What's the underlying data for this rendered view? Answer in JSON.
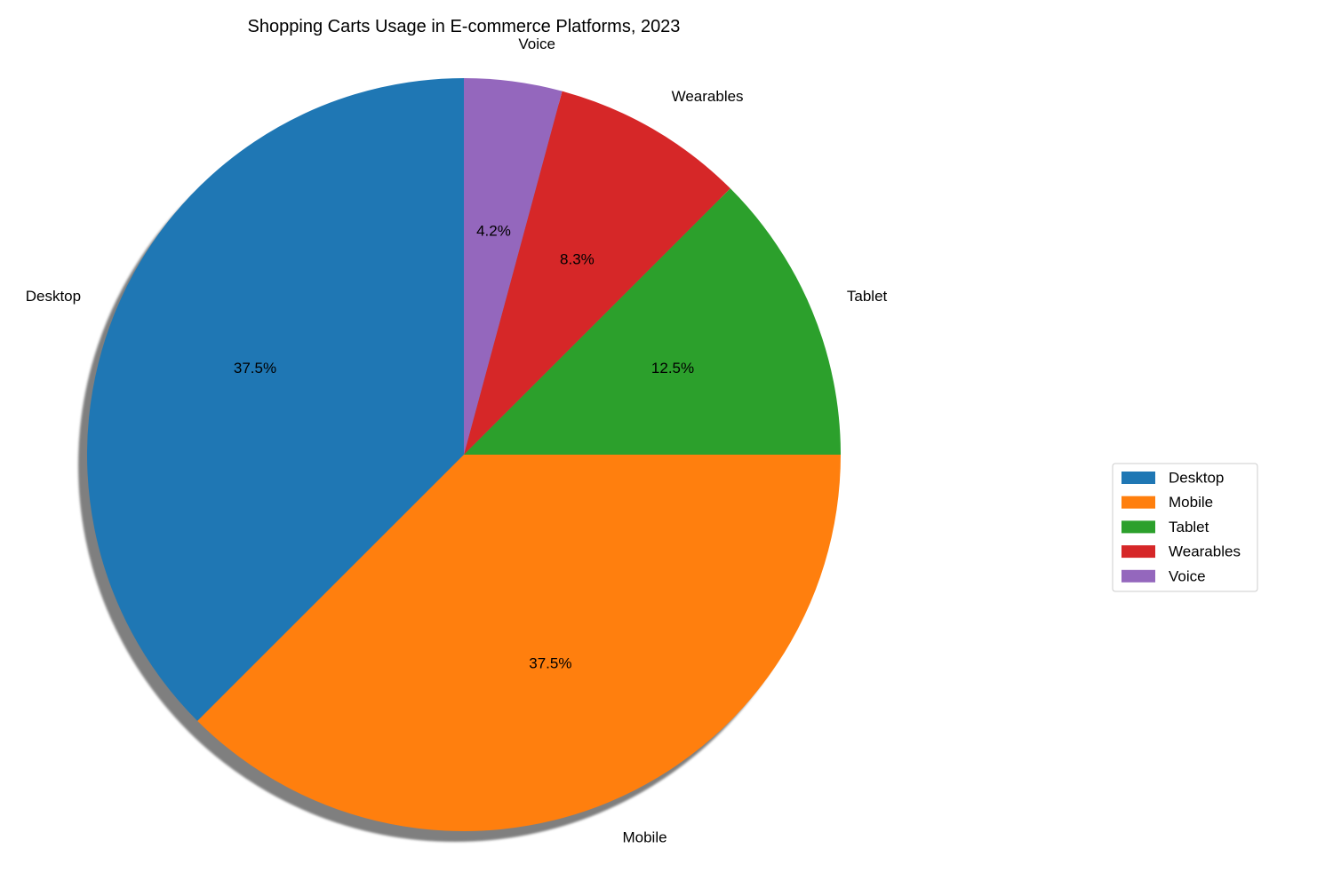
{
  "chart_data": {
    "type": "pie",
    "title": "Shopping Carts Usage in E-commerce Platforms, 2023",
    "categories": [
      "Desktop",
      "Mobile",
      "Tablet",
      "Wearables",
      "Voice"
    ],
    "values": [
      37.5,
      37.5,
      12.5,
      8.3,
      4.2
    ],
    "value_labels": [
      "37.5%",
      "37.5%",
      "12.5%",
      "8.3%",
      "4.2%"
    ],
    "colors": [
      "#1f77b4",
      "#ff7f0e",
      "#2ca02c",
      "#d62728",
      "#9467bd"
    ],
    "start_angle_deg": 90,
    "direction": "counterclockwise",
    "shadow": true,
    "legend": {
      "position": "right",
      "entries": [
        "Desktop",
        "Mobile",
        "Tablet",
        "Wearables",
        "Voice"
      ]
    }
  }
}
